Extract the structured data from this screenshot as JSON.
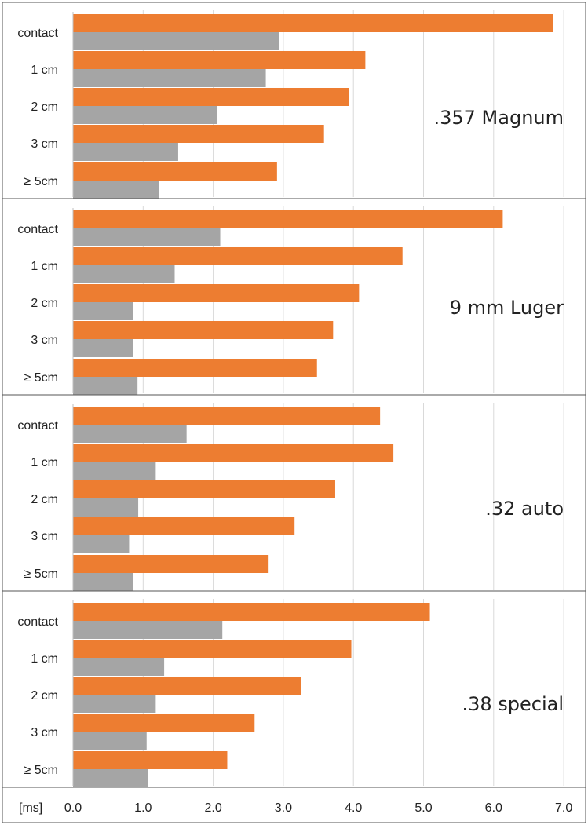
{
  "chart_data": [
    {
      "type": "bar",
      "orientation": "horizontal",
      "title": ".357 Magnum",
      "categories": [
        "contact",
        "1 cm",
        "2 cm",
        "3 cm",
        "≥ 5cm"
      ],
      "series": [
        {
          "color": "#ed7d31",
          "values": [
            6.85,
            4.17,
            3.94,
            3.58,
            2.91
          ]
        },
        {
          "color": "#a5a5a5",
          "values": [
            2.94,
            2.75,
            2.06,
            1.5,
            1.23
          ]
        }
      ],
      "xlim": [
        0,
        7
      ],
      "grid": true
    },
    {
      "type": "bar",
      "orientation": "horizontal",
      "title": "9 mm Luger",
      "categories": [
        "contact",
        "1 cm",
        "2 cm",
        "3 cm",
        "≥ 5cm"
      ],
      "series": [
        {
          "color": "#ed7d31",
          "values": [
            6.13,
            4.7,
            4.08,
            3.71,
            3.48
          ]
        },
        {
          "color": "#a5a5a5",
          "values": [
            2.1,
            1.45,
            0.86,
            0.86,
            0.92
          ]
        }
      ],
      "xlim": [
        0,
        7
      ],
      "grid": true
    },
    {
      "type": "bar",
      "orientation": "horizontal",
      "title": ".32 auto",
      "categories": [
        "contact",
        "1 cm",
        "2 cm",
        "3 cm",
        "≥ 5cm"
      ],
      "series": [
        {
          "color": "#ed7d31",
          "values": [
            4.38,
            4.57,
            3.74,
            3.16,
            2.79
          ]
        },
        {
          "color": "#a5a5a5",
          "values": [
            1.62,
            1.18,
            0.93,
            0.8,
            0.86
          ]
        }
      ],
      "xlim": [
        0,
        7
      ],
      "grid": true
    },
    {
      "type": "bar",
      "orientation": "horizontal",
      "title": ".38 special",
      "categories": [
        "contact",
        "1 cm",
        "2 cm",
        "3 cm",
        "≥ 5cm"
      ],
      "series": [
        {
          "color": "#ed7d31",
          "values": [
            5.09,
            3.97,
            3.25,
            2.59,
            2.2
          ]
        },
        {
          "color": "#a5a5a5",
          "values": [
            2.13,
            1.3,
            1.18,
            1.05,
            1.07
          ]
        }
      ],
      "xlim": [
        0,
        7
      ],
      "grid": true
    }
  ],
  "x_axis": {
    "unit_label": "[ms]",
    "ticks": [
      "0.0",
      "1.0",
      "2.0",
      "3.0",
      "4.0",
      "5.0",
      "6.0",
      "7.0"
    ],
    "tick_values": [
      0,
      1,
      2,
      3,
      4,
      5,
      6,
      7
    ]
  },
  "colors": {
    "series_1": "#ed7d31",
    "series_2": "#a5a5a5",
    "grid": "#d9d9d9",
    "frame": "#555555"
  }
}
